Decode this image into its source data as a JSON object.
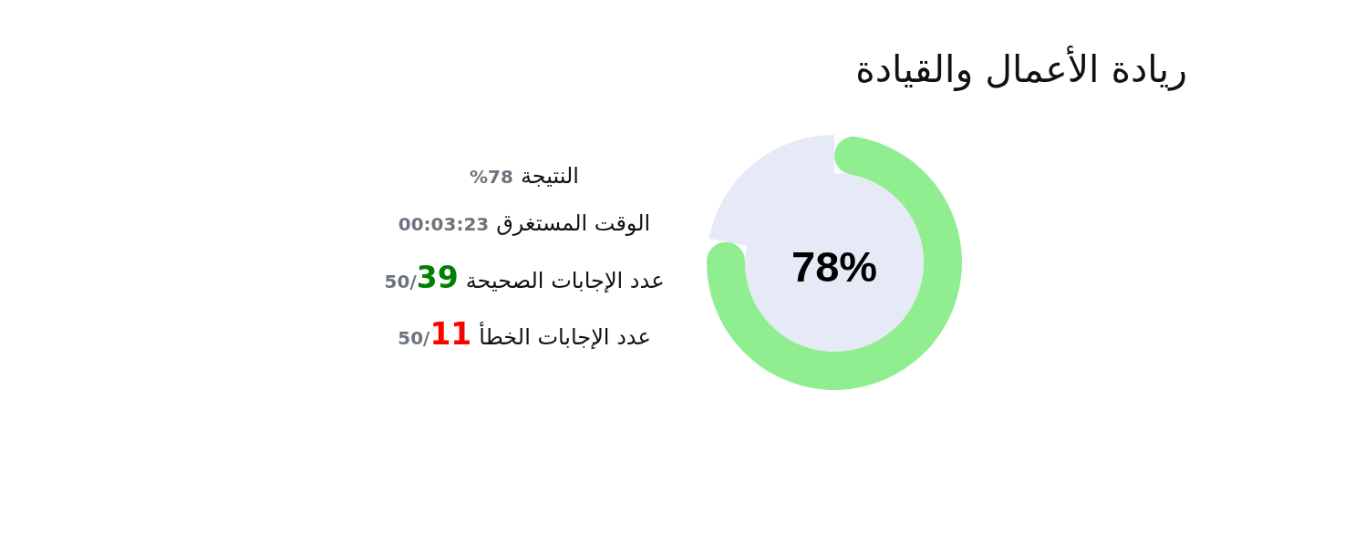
{
  "chart_data": {
    "type": "donut",
    "title": "ريادة الأعمال والقيادة",
    "categories": [
      null,
      null
    ],
    "values": [
      78,
      22
    ],
    "colors": [
      "#90ee90",
      "#e5eaf6"
    ],
    "annotations": [
      "78%",
      "النتيجة",
      "%78",
      "الوقت المستغرق",
      "00:03:23",
      "عدد الإجابات الصحيحة",
      "39",
      "/50",
      "عدد الإجابات الخطأ",
      "11",
      "/50"
    ]
  }
}
